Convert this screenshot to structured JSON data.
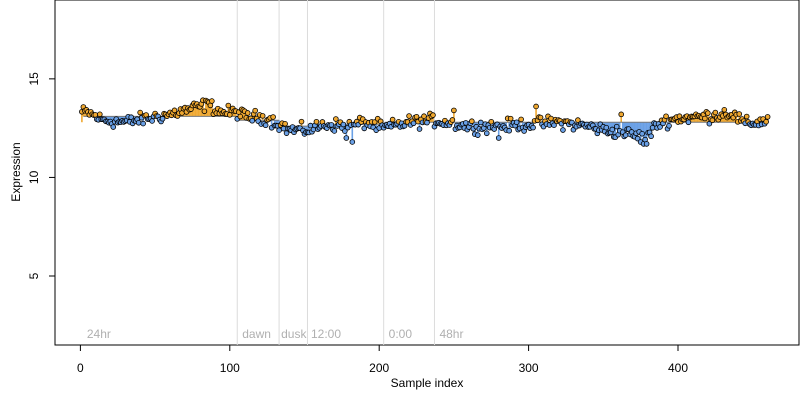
{
  "chart_data": {
    "type": "scatter",
    "title": "",
    "xlabel": "Sample index",
    "ylabel": "Expression",
    "xlim": [
      -17,
      481
    ],
    "ylim": [
      1.5,
      19
    ],
    "x_ticks": [
      0,
      100,
      200,
      300,
      400
    ],
    "y_ticks": [
      5,
      10,
      15
    ],
    "grid": false,
    "legend": "none",
    "colors": {
      "above": "#f0a830",
      "below": "#6aa0e6",
      "point_stroke": "#000000",
      "separator": "#dcdcdc",
      "annotation": "#b0b0b0"
    },
    "baseline_segments": [
      {
        "x0": 2,
        "x1": 105,
        "y": 13.1
      },
      {
        "x0": 106,
        "x1": 133,
        "y": 12.9
      },
      {
        "x0": 134,
        "x1": 152,
        "y": 12.6
      },
      {
        "x0": 153,
        "x1": 203,
        "y": 12.7
      },
      {
        "x0": 204,
        "x1": 237,
        "y": 12.8
      },
      {
        "x0": 238,
        "x1": 460,
        "y": 12.8
      }
    ],
    "separators": [
      105,
      133,
      152,
      203,
      237
    ],
    "annotations": [
      {
        "x": 3,
        "text": "24hr"
      },
      {
        "x": 107,
        "text": "dawn"
      },
      {
        "x": 133,
        "text": "dusk"
      },
      {
        "x": 153,
        "text": "12:00"
      },
      {
        "x": 205,
        "text": "0:00"
      },
      {
        "x": 239,
        "text": "48hr"
      }
    ],
    "n_points": 460,
    "profile": [
      [
        0,
        13.3
      ],
      [
        5,
        13.3
      ],
      [
        15,
        12.9
      ],
      [
        30,
        12.8
      ],
      [
        45,
        13.0
      ],
      [
        60,
        13.2
      ],
      [
        75,
        13.5
      ],
      [
        85,
        13.7
      ],
      [
        95,
        13.3
      ],
      [
        105,
        13.3
      ],
      [
        110,
        13.1
      ],
      [
        125,
        13.0
      ],
      [
        133,
        12.7
      ],
      [
        140,
        12.4
      ],
      [
        152,
        12.4
      ],
      [
        165,
        12.7
      ],
      [
        180,
        12.6
      ],
      [
        190,
        12.8
      ],
      [
        203,
        12.5
      ],
      [
        220,
        12.8
      ],
      [
        237,
        12.9
      ],
      [
        260,
        12.6
      ],
      [
        280,
        12.6
      ],
      [
        300,
        12.7
      ],
      [
        320,
        12.8
      ],
      [
        340,
        12.6
      ],
      [
        350,
        12.4
      ],
      [
        362,
        12.3
      ],
      [
        378,
        12.0
      ],
      [
        388,
        12.8
      ],
      [
        400,
        13.0
      ],
      [
        420,
        13.1
      ],
      [
        435,
        13.3
      ],
      [
        445,
        12.7
      ],
      [
        460,
        12.9
      ]
    ],
    "outliers": [
      {
        "x": 178,
        "y": 12.0
      },
      {
        "x": 182,
        "y": 11.8
      },
      {
        "x": 250,
        "y": 13.4
      },
      {
        "x": 280,
        "y": 12.0
      },
      {
        "x": 305,
        "y": 13.6
      },
      {
        "x": 362,
        "y": 13.2
      },
      {
        "x": 377,
        "y": 11.7
      },
      {
        "x": 379,
        "y": 11.7
      },
      {
        "x": 84,
        "y": 13.9
      }
    ]
  }
}
